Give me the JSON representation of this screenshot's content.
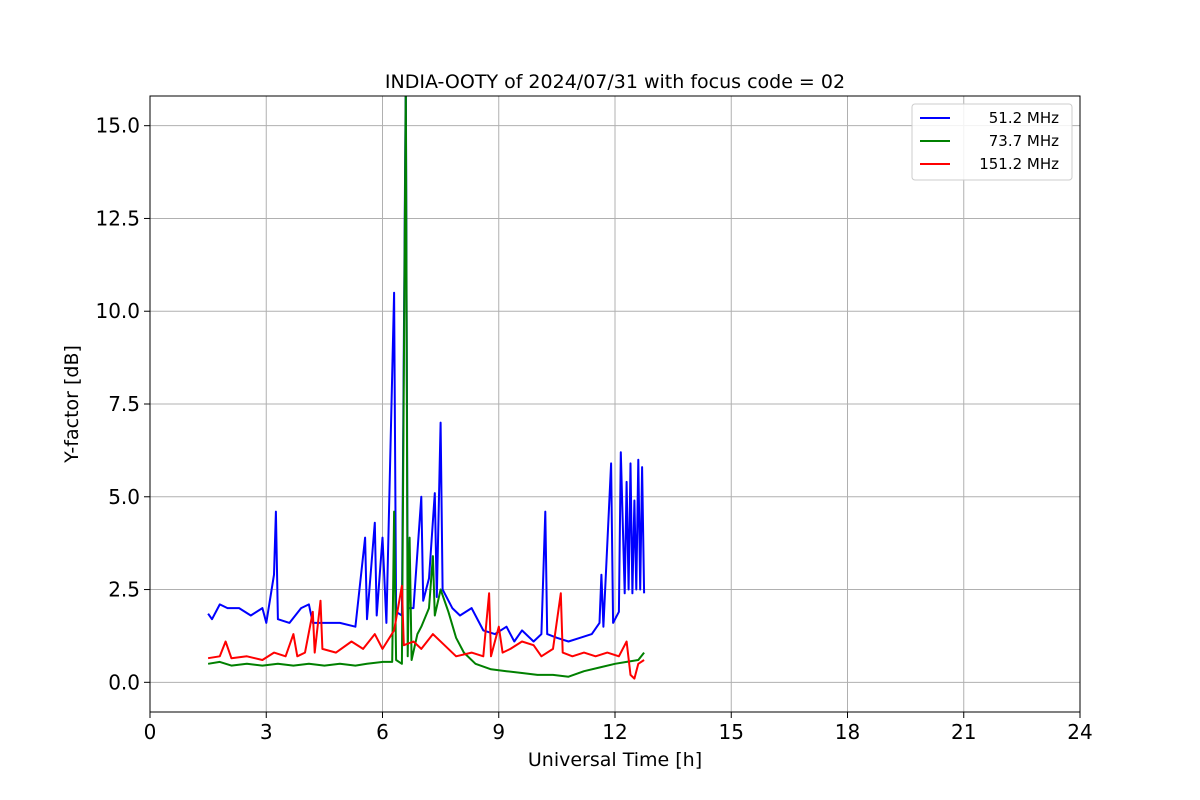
{
  "chart_data": {
    "type": "line",
    "title": "INDIA-OOTY of 2024/07/31 with focus code = 02",
    "xlabel": "Universal Time [h]",
    "ylabel": "Y-factor [dB]",
    "xlim": [
      0,
      24
    ],
    "ylim": [
      -0.8,
      15.8
    ],
    "x_ticks": [
      0,
      3,
      6,
      9,
      12,
      15,
      18,
      21,
      24
    ],
    "x_tick_labels": [
      "0",
      "3",
      "6",
      "9",
      "12",
      "15",
      "18",
      "21",
      "24"
    ],
    "y_ticks": [
      0.0,
      2.5,
      5.0,
      7.5,
      10.0,
      12.5,
      15.0
    ],
    "y_tick_labels": [
      "0.0",
      "2.5",
      "5.0",
      "7.5",
      "10.0",
      "12.5",
      "15.0"
    ],
    "grid": true,
    "legend_position": "top-right",
    "series": [
      {
        "name": "51.2 MHz",
        "color": "#0000ff",
        "points": [
          [
            1.5,
            1.85
          ],
          [
            1.6,
            1.7
          ],
          [
            1.8,
            2.1
          ],
          [
            2.0,
            2.0
          ],
          [
            2.3,
            2.0
          ],
          [
            2.6,
            1.8
          ],
          [
            2.9,
            2.0
          ],
          [
            3.0,
            1.6
          ],
          [
            3.2,
            2.9
          ],
          [
            3.25,
            4.6
          ],
          [
            3.3,
            1.7
          ],
          [
            3.6,
            1.6
          ],
          [
            3.9,
            2.0
          ],
          [
            4.1,
            2.1
          ],
          [
            4.2,
            1.6
          ],
          [
            4.5,
            1.6
          ],
          [
            4.9,
            1.6
          ],
          [
            5.3,
            1.5
          ],
          [
            5.55,
            3.9
          ],
          [
            5.6,
            1.7
          ],
          [
            5.8,
            4.3
          ],
          [
            5.85,
            1.8
          ],
          [
            6.0,
            3.9
          ],
          [
            6.1,
            1.6
          ],
          [
            6.3,
            10.5
          ],
          [
            6.35,
            1.9
          ],
          [
            6.5,
            1.8
          ],
          [
            6.6,
            16.5
          ],
          [
            6.65,
            2.0
          ],
          [
            6.8,
            2.0
          ],
          [
            7.0,
            5.0
          ],
          [
            7.05,
            2.2
          ],
          [
            7.2,
            2.8
          ],
          [
            7.35,
            5.1
          ],
          [
            7.4,
            2.3
          ],
          [
            7.5,
            7.0
          ],
          [
            7.55,
            2.5
          ],
          [
            7.8,
            2.0
          ],
          [
            8.0,
            1.8
          ],
          [
            8.3,
            2.0
          ],
          [
            8.6,
            1.4
          ],
          [
            8.9,
            1.3
          ],
          [
            9.2,
            1.5
          ],
          [
            9.4,
            1.1
          ],
          [
            9.6,
            1.4
          ],
          [
            9.9,
            1.1
          ],
          [
            10.1,
            1.3
          ],
          [
            10.2,
            4.6
          ],
          [
            10.25,
            1.3
          ],
          [
            10.5,
            1.2
          ],
          [
            10.8,
            1.1
          ],
          [
            11.1,
            1.2
          ],
          [
            11.4,
            1.3
          ],
          [
            11.6,
            1.6
          ],
          [
            11.65,
            2.9
          ],
          [
            11.7,
            1.5
          ],
          [
            11.9,
            5.9
          ],
          [
            11.95,
            1.6
          ],
          [
            12.1,
            1.9
          ],
          [
            12.15,
            6.2
          ],
          [
            12.25,
            2.4
          ],
          [
            12.3,
            5.4
          ],
          [
            12.35,
            2.5
          ],
          [
            12.4,
            5.9
          ],
          [
            12.45,
            2.4
          ],
          [
            12.5,
            4.9
          ],
          [
            12.55,
            2.5
          ],
          [
            12.6,
            6.0
          ],
          [
            12.65,
            2.5
          ],
          [
            12.7,
            5.8
          ],
          [
            12.75,
            2.4
          ]
        ]
      },
      {
        "name": "73.7 MHz",
        "color": "#008000",
        "points": [
          [
            1.5,
            0.5
          ],
          [
            1.8,
            0.55
          ],
          [
            2.1,
            0.45
          ],
          [
            2.5,
            0.5
          ],
          [
            2.9,
            0.45
          ],
          [
            3.3,
            0.5
          ],
          [
            3.7,
            0.45
          ],
          [
            4.1,
            0.5
          ],
          [
            4.5,
            0.45
          ],
          [
            4.9,
            0.5
          ],
          [
            5.3,
            0.45
          ],
          [
            5.6,
            0.5
          ],
          [
            6.0,
            0.55
          ],
          [
            6.25,
            0.55
          ],
          [
            6.3,
            4.6
          ],
          [
            6.35,
            0.6
          ],
          [
            6.5,
            0.5
          ],
          [
            6.6,
            16.2
          ],
          [
            6.65,
            0.7
          ],
          [
            6.7,
            3.9
          ],
          [
            6.75,
            0.6
          ],
          [
            6.9,
            1.3
          ],
          [
            7.0,
            1.5
          ],
          [
            7.2,
            2.0
          ],
          [
            7.3,
            3.4
          ],
          [
            7.35,
            1.8
          ],
          [
            7.5,
            2.5
          ],
          [
            7.7,
            1.9
          ],
          [
            7.9,
            1.2
          ],
          [
            8.1,
            0.8
          ],
          [
            8.4,
            0.5
          ],
          [
            8.8,
            0.35
          ],
          [
            9.2,
            0.3
          ],
          [
            9.6,
            0.25
          ],
          [
            10.0,
            0.2
          ],
          [
            10.4,
            0.2
          ],
          [
            10.8,
            0.15
          ],
          [
            11.2,
            0.3
          ],
          [
            11.6,
            0.4
          ],
          [
            12.0,
            0.5
          ],
          [
            12.3,
            0.55
          ],
          [
            12.6,
            0.6
          ],
          [
            12.75,
            0.8
          ]
        ]
      },
      {
        "name": "151.2 MHz",
        "color": "#ff0000",
        "points": [
          [
            1.5,
            0.65
          ],
          [
            1.8,
            0.7
          ],
          [
            1.95,
            1.1
          ],
          [
            2.1,
            0.65
          ],
          [
            2.5,
            0.7
          ],
          [
            2.9,
            0.6
          ],
          [
            3.2,
            0.8
          ],
          [
            3.5,
            0.7
          ],
          [
            3.7,
            1.3
          ],
          [
            3.8,
            0.7
          ],
          [
            4.0,
            0.8
          ],
          [
            4.2,
            1.9
          ],
          [
            4.25,
            0.8
          ],
          [
            4.4,
            2.2
          ],
          [
            4.45,
            0.9
          ],
          [
            4.8,
            0.8
          ],
          [
            5.2,
            1.1
          ],
          [
            5.5,
            0.9
          ],
          [
            5.8,
            1.3
          ],
          [
            6.0,
            0.9
          ],
          [
            6.3,
            1.4
          ],
          [
            6.5,
            2.6
          ],
          [
            6.55,
            1.0
          ],
          [
            6.8,
            1.1
          ],
          [
            7.0,
            0.9
          ],
          [
            7.3,
            1.3
          ],
          [
            7.6,
            1.0
          ],
          [
            7.9,
            0.7
          ],
          [
            8.3,
            0.8
          ],
          [
            8.6,
            0.7
          ],
          [
            8.75,
            2.4
          ],
          [
            8.8,
            0.7
          ],
          [
            9.0,
            1.5
          ],
          [
            9.1,
            0.8
          ],
          [
            9.3,
            0.9
          ],
          [
            9.6,
            1.1
          ],
          [
            9.9,
            1.0
          ],
          [
            10.1,
            0.7
          ],
          [
            10.4,
            0.9
          ],
          [
            10.6,
            2.4
          ],
          [
            10.65,
            0.8
          ],
          [
            10.9,
            0.7
          ],
          [
            11.2,
            0.8
          ],
          [
            11.5,
            0.7
          ],
          [
            11.8,
            0.8
          ],
          [
            12.1,
            0.7
          ],
          [
            12.3,
            1.1
          ],
          [
            12.4,
            0.2
          ],
          [
            12.5,
            0.1
          ],
          [
            12.6,
            0.5
          ],
          [
            12.75,
            0.6
          ]
        ]
      }
    ]
  }
}
